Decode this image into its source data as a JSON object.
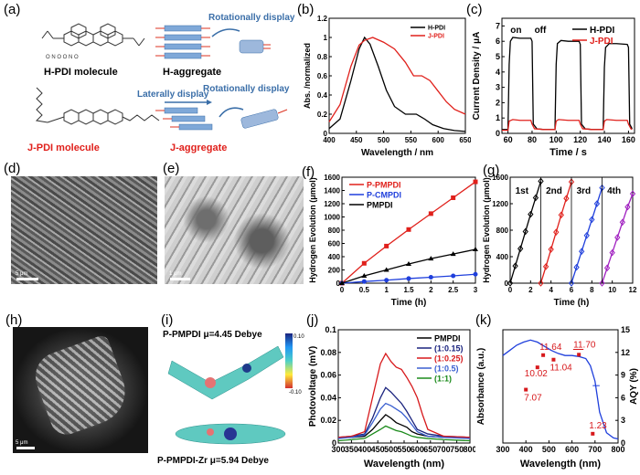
{
  "labels": {
    "a": "(a)",
    "b": "(b)",
    "c": "(c)",
    "d": "(d)",
    "e": "(e)",
    "f": "(f)",
    "g": "(g)",
    "h": "(h)",
    "i": "(i)",
    "j": "(j)",
    "k": "(k)"
  },
  "panel_a": {
    "hpdi_molecule": "H-PDI molecule",
    "h_aggregate": "H-aggregate",
    "jpdi_molecule": "J-PDI molecule",
    "j_aggregate": "J-aggregate",
    "rot_display_1": "Rotationally display",
    "lat_display": "Laterally display",
    "rot_display_2": "Rotationally display"
  },
  "panel_i": {
    "top": "P-PMPDI μ=4.45 Debye",
    "bottom": "P-PMPDI-Zr μ=5.94 Debye",
    "cb_max": "0.10",
    "cb_min": "-0.10"
  },
  "scale_bars": {
    "d": "5 μm",
    "e": "1 μm",
    "h": "5 μm"
  },
  "chart_data": [
    {
      "id": "b",
      "type": "line",
      "xlabel": "Wavelength / nm",
      "ylabel": "Abs. /normalized",
      "xlim": [
        400,
        650
      ],
      "ylim": [
        0.0,
        1.2
      ],
      "xticks": [
        400,
        450,
        500,
        550,
        600,
        650
      ],
      "yticks": [
        0.0,
        0.2,
        0.4,
        0.6,
        0.8,
        1.0,
        1.2
      ],
      "legend": "top-right",
      "series": [
        {
          "name": "H-PDI",
          "color": "#000000",
          "x": [
            400,
            420,
            440,
            455,
            465,
            475,
            490,
            505,
            520,
            540,
            560,
            575,
            590,
            610,
            630,
            650
          ],
          "y": [
            0.05,
            0.15,
            0.55,
            0.88,
            1.0,
            0.93,
            0.7,
            0.45,
            0.28,
            0.2,
            0.2,
            0.15,
            0.09,
            0.05,
            0.03,
            0.02
          ]
        },
        {
          "name": "J-PDI",
          "color": "#e0201b",
          "x": [
            400,
            420,
            440,
            455,
            465,
            480,
            500,
            520,
            540,
            555,
            570,
            585,
            600,
            615,
            630,
            650
          ],
          "y": [
            0.12,
            0.3,
            0.7,
            0.92,
            0.97,
            1.0,
            0.95,
            0.88,
            0.74,
            0.6,
            0.6,
            0.55,
            0.44,
            0.33,
            0.25,
            0.2
          ]
        }
      ]
    },
    {
      "id": "c",
      "type": "line",
      "xlabel": "Time / s",
      "ylabel": "Current Density / μA",
      "xlim": [
        55,
        165
      ],
      "ylim": [
        0,
        7.5
      ],
      "xticks": [
        60,
        80,
        100,
        120,
        140,
        160
      ],
      "yticks": [
        0,
        1,
        2,
        3,
        4,
        5,
        6,
        7
      ],
      "annotations": [
        "on",
        "off"
      ],
      "legend": "top-right",
      "series": [
        {
          "name": "H-PDI",
          "color": "#000000",
          "x": [
            55,
            60,
            61,
            62,
            64,
            70,
            79,
            80,
            81,
            84,
            90,
            99,
            100,
            101,
            104,
            110,
            119,
            120,
            121,
            124,
            130,
            139,
            140,
            141,
            144,
            150,
            159,
            160,
            161,
            163
          ],
          "y": [
            0.25,
            0.25,
            4.5,
            6.0,
            6.25,
            6.2,
            6.2,
            6.0,
            0.6,
            0.3,
            0.25,
            0.25,
            4.5,
            5.85,
            6.05,
            6.0,
            6.0,
            5.8,
            0.6,
            0.3,
            0.25,
            0.25,
            4.3,
            5.6,
            5.85,
            5.85,
            5.8,
            5.6,
            0.6,
            0.3
          ]
        },
        {
          "name": "J-PDI",
          "color": "#e0201b",
          "x": [
            55,
            60,
            61,
            64,
            70,
            79,
            80,
            82,
            90,
            99,
            100,
            102,
            110,
            119,
            120,
            122,
            130,
            139,
            140,
            142,
            150,
            159,
            160,
            162,
            163
          ],
          "y": [
            0.2,
            0.2,
            0.8,
            0.9,
            0.85,
            0.85,
            0.6,
            0.3,
            0.25,
            0.25,
            0.8,
            0.9,
            0.85,
            0.85,
            0.6,
            0.3,
            0.25,
            0.25,
            0.8,
            0.9,
            0.85,
            0.85,
            0.6,
            0.3,
            0.25
          ]
        }
      ]
    },
    {
      "id": "f",
      "type": "line",
      "xlabel": "Time (h)",
      "ylabel": "Hydrogen Evolution (μmol)",
      "xlim": [
        0,
        3.0
      ],
      "ylim": [
        0,
        1600
      ],
      "xticks": [
        0.0,
        0.5,
        1.0,
        1.5,
        2.0,
        2.5,
        3.0
      ],
      "yticks": [
        0,
        200,
        400,
        600,
        800,
        1000,
        1200,
        1400,
        1600
      ],
      "legend": "top-left",
      "series": [
        {
          "name": "P-PMPDI",
          "color": "#e0201b",
          "marker": "square",
          "x": [
            0,
            0.5,
            1.0,
            1.5,
            2.0,
            2.5,
            3.0
          ],
          "y": [
            0,
            300,
            560,
            810,
            1050,
            1290,
            1530
          ]
        },
        {
          "name": "P-CMPDI",
          "color": "#1f3fdc",
          "marker": "circle",
          "x": [
            0,
            0.5,
            1.0,
            1.5,
            2.0,
            2.5,
            3.0
          ],
          "y": [
            0,
            25,
            45,
            70,
            90,
            110,
            135
          ]
        },
        {
          "name": "PMPDI",
          "color": "#000000",
          "marker": "triangle",
          "x": [
            0,
            0.5,
            1.0,
            1.5,
            2.0,
            2.5,
            3.0
          ],
          "y": [
            0,
            110,
            200,
            290,
            370,
            440,
            510
          ]
        }
      ]
    },
    {
      "id": "g",
      "type": "line",
      "xlabel": "Time (h)",
      "ylabel": "Hydrogen Evolution (μmol)",
      "xlim": [
        0,
        12
      ],
      "ylim": [
        0,
        1600
      ],
      "xticks": [
        0,
        2,
        4,
        6,
        8,
        10,
        12
      ],
      "yticks": [
        0,
        400,
        800,
        1200,
        1600
      ],
      "annotations": [
        "1st",
        "2nd",
        "3rd",
        "4th"
      ],
      "series": [
        {
          "name": "1st",
          "color": "#000000",
          "marker": "diamond",
          "x": [
            0,
            0.5,
            1.0,
            1.5,
            2.0,
            2.5,
            3.0
          ],
          "y": [
            0,
            260,
            520,
            780,
            1040,
            1290,
            1540
          ]
        },
        {
          "name": "2nd",
          "color": "#e0201b",
          "marker": "diamond",
          "x": [
            3.0,
            3.5,
            4.0,
            4.5,
            5.0,
            5.5,
            6.0
          ],
          "y": [
            0,
            250,
            510,
            770,
            1030,
            1280,
            1530
          ]
        },
        {
          "name": "3rd",
          "color": "#1f3fdc",
          "marker": "diamond",
          "x": [
            6.0,
            6.5,
            7.0,
            7.5,
            8.0,
            8.5,
            9.0
          ],
          "y": [
            0,
            240,
            480,
            720,
            960,
            1200,
            1440
          ]
        },
        {
          "name": "4th",
          "color": "#a020c0",
          "marker": "diamond",
          "x": [
            9.0,
            9.5,
            10.0,
            10.5,
            11.0,
            11.5,
            12.0
          ],
          "y": [
            0,
            230,
            460,
            690,
            920,
            1150,
            1350
          ]
        }
      ]
    },
    {
      "id": "j",
      "type": "line",
      "xlabel": "Wavelength (nm)",
      "ylabel": "Photovoltage (mV)",
      "xlim": [
        300,
        800
      ],
      "ylim": [
        0,
        0.1
      ],
      "xticks": [
        300,
        350,
        400,
        450,
        500,
        550,
        600,
        650,
        700,
        750,
        800
      ],
      "yticks": [
        0.0,
        0.02,
        0.04,
        0.06,
        0.08,
        0.1
      ],
      "legend": "top-right",
      "series": [
        {
          "name": "PMPDI",
          "color": "#000000",
          "x": [
            300,
            350,
            400,
            430,
            460,
            480,
            500,
            520,
            540,
            560,
            580,
            600,
            640,
            700,
            800
          ],
          "y": [
            0.005,
            0.005,
            0.006,
            0.012,
            0.02,
            0.025,
            0.022,
            0.018,
            0.016,
            0.014,
            0.01,
            0.008,
            0.006,
            0.005,
            0.005
          ]
        },
        {
          "name": "(1:0.15)",
          "color": "#1a237e",
          "x": [
            300,
            350,
            400,
            430,
            460,
            480,
            500,
            520,
            540,
            560,
            580,
            600,
            640,
            700,
            800
          ],
          "y": [
            0.005,
            0.006,
            0.008,
            0.022,
            0.04,
            0.049,
            0.045,
            0.04,
            0.035,
            0.028,
            0.02,
            0.012,
            0.008,
            0.006,
            0.005
          ]
        },
        {
          "name": "(1:0.25)",
          "color": "#d7191c",
          "x": [
            300,
            350,
            400,
            430,
            460,
            480,
            500,
            520,
            540,
            560,
            580,
            600,
            620,
            640,
            700,
            800
          ],
          "y": [
            0.005,
            0.006,
            0.01,
            0.04,
            0.07,
            0.079,
            0.072,
            0.067,
            0.065,
            0.058,
            0.05,
            0.04,
            0.025,
            0.012,
            0.006,
            0.005
          ]
        },
        {
          "name": "(1:0.5)",
          "color": "#3a5fd0",
          "x": [
            300,
            350,
            400,
            430,
            460,
            480,
            500,
            520,
            540,
            560,
            580,
            600,
            640,
            700,
            800
          ],
          "y": [
            0.004,
            0.005,
            0.007,
            0.018,
            0.03,
            0.035,
            0.033,
            0.03,
            0.027,
            0.022,
            0.016,
            0.01,
            0.006,
            0.005,
            0.004
          ]
        },
        {
          "name": "(1:1)",
          "color": "#1a8a1a",
          "x": [
            300,
            350,
            400,
            430,
            460,
            480,
            500,
            520,
            540,
            560,
            580,
            600,
            640,
            700,
            800
          ],
          "y": [
            0.002,
            0.003,
            0.004,
            0.008,
            0.012,
            0.015,
            0.013,
            0.011,
            0.01,
            0.008,
            0.006,
            0.005,
            0.004,
            0.003,
            0.002
          ]
        }
      ]
    },
    {
      "id": "k",
      "type": "line",
      "xlabel": "Wavelength (nm)",
      "ylabel": "Absorbance (a.u.)",
      "ylabel_right": "AQY (%)",
      "xlim": [
        300,
        800
      ],
      "ylim_right": [
        0,
        15
      ],
      "xticks": [
        300,
        400,
        500,
        600,
        700,
        800
      ],
      "yticks_right": [
        0,
        3,
        6,
        9,
        12,
        15
      ],
      "series": [
        {
          "name": "absorbance",
          "color": "#1f3fdc",
          "x": [
            300,
            330,
            360,
            390,
            420,
            450,
            480,
            510,
            540,
            570,
            600,
            630,
            660,
            680,
            700,
            720,
            750,
            780,
            800
          ],
          "y": [
            0.85,
            0.9,
            0.95,
            0.98,
            1.0,
            0.98,
            0.94,
            0.9,
            0.87,
            0.85,
            0.85,
            0.84,
            0.82,
            0.75,
            0.6,
            0.3,
            0.1,
            0.05,
            0.04
          ]
        }
      ],
      "points": [
        {
          "x": 400,
          "y": 7.07,
          "label": "7.07"
        },
        {
          "x": 450,
          "y": 10.02,
          "label": "10.02"
        },
        {
          "x": 475,
          "y": 11.64,
          "label": "11.64"
        },
        {
          "x": 520,
          "y": 11.04,
          "label": "11.04"
        },
        {
          "x": 630,
          "y": 11.7,
          "label": "11.70"
        },
        {
          "x": 690,
          "y": 1.23,
          "label": "1.23"
        }
      ],
      "points_color": "#d7191c"
    }
  ]
}
